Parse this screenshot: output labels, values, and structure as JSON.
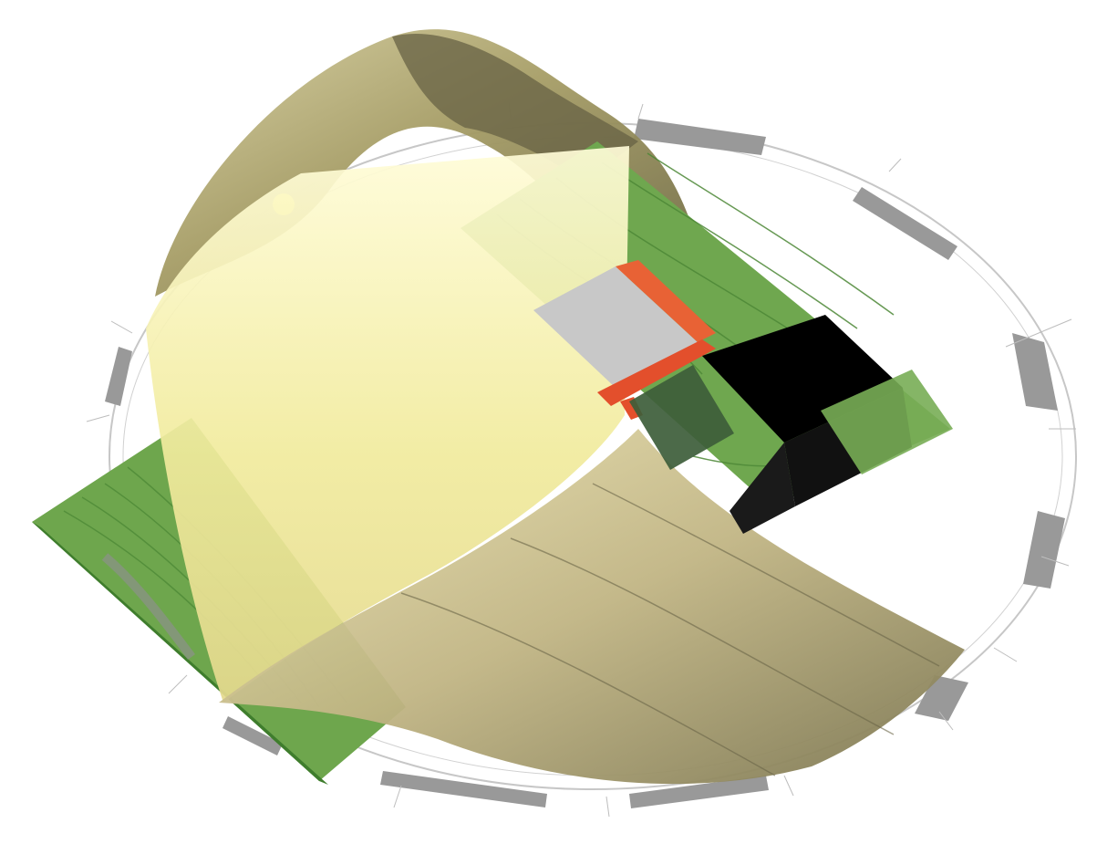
{
  "diagram": {
    "labels": {
      "top_label": "",
      "bottom_label": "",
      "right_letter": "",
      "left_letter": "",
      "bottom_letter": ""
    },
    "colors": {
      "ring": "#b8b8b8",
      "ring_segment": "#8d8d8d",
      "green_plane": "#6fa64e",
      "green_plane_dark": "#4e8a37",
      "sun_plane": "#f6f2b0",
      "arch_olive": "#a79f67",
      "arch_dark": "#6f6a45",
      "grey_block": "#c9c9c9",
      "black_block": "#000000",
      "red_frame": "#e85e34",
      "yellow_sun_dot": "#f2ea47"
    }
  }
}
